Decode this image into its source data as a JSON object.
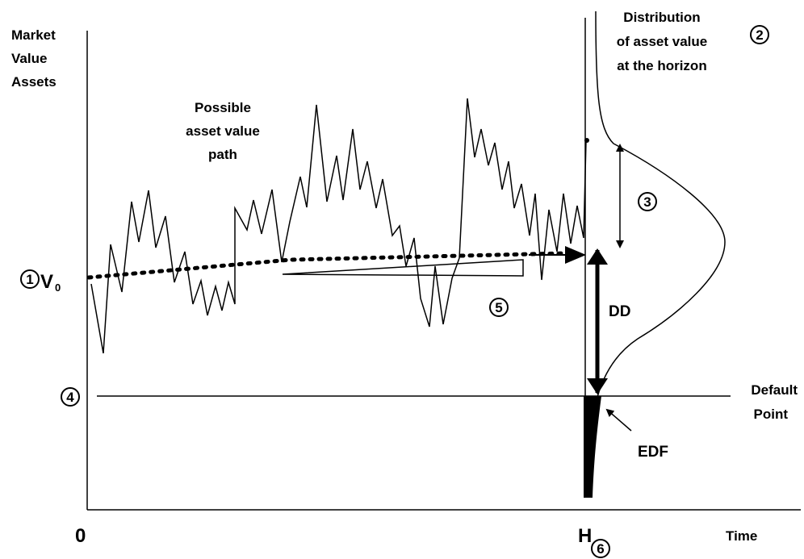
{
  "labels": {
    "y_axis_line1": "Market",
    "y_axis_line2": "Value",
    "y_axis_line3": "Assets",
    "x_origin": "0",
    "x_axis": "Time",
    "horizon": "H",
    "v0_main": "V",
    "v0_sub": "0",
    "path_line1": "Possible",
    "path_line2": "asset value",
    "path_line3": "path",
    "dist_line1": "Distribution",
    "dist_line2": "of asset value",
    "dist_line3": "at the horizon",
    "default_line1": "Default",
    "default_line2": "Point",
    "dd": "DD",
    "edf": "EDF"
  },
  "markers": {
    "m1": "1",
    "m2": "2",
    "m3": "3",
    "m4": "4",
    "m5": "5",
    "m6": "6"
  },
  "colors": {
    "ink": "#000000",
    "background": "#ffffff"
  }
}
